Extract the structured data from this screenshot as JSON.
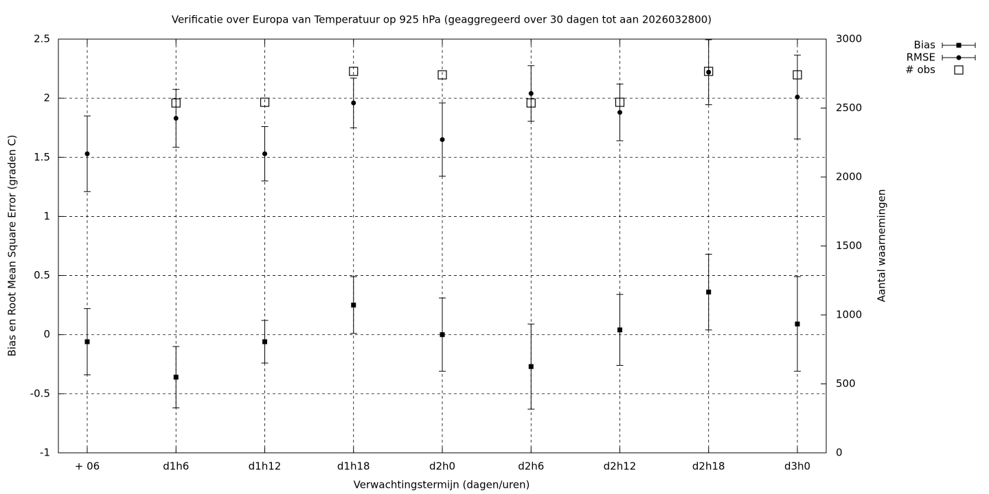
{
  "chart_data": {
    "type": "errorbar",
    "title": "Verificatie over Europa van Temperatuur op 925 hPa (geaggregeerd over 30 dagen tot aan 2026032800)",
    "x_label": "Verwachtingstermijn (dagen/uren)",
    "y_label": "Bias en Root Mean Square Error (graden C)",
    "y2_label": "Aantal waarnemingen",
    "categories": [
      "+ 06",
      "d1h6",
      "d1h12",
      "d1h18",
      "d2h0",
      "d2h6",
      "d2h12",
      "d2h18",
      "d3h0"
    ],
    "series": [
      {
        "name": "Bias",
        "color": "#000000",
        "marker": "square",
        "values": [
          -0.06,
          -0.36,
          -0.06,
          0.25,
          0.0,
          -0.27,
          0.04,
          0.36,
          0.09
        ],
        "errors": [
          0.28,
          0.26,
          0.18,
          0.24,
          0.31,
          0.36,
          0.3,
          0.32,
          0.4
        ]
      },
      {
        "name": "RMSE",
        "color": "#000000",
        "marker": "circle",
        "values": [
          1.53,
          1.83,
          1.53,
          1.96,
          1.65,
          2.04,
          1.88,
          2.22,
          2.01
        ],
        "errors": [
          0.32,
          0.245,
          0.23,
          0.21,
          0.31,
          0.235,
          0.24,
          0.275,
          0.355
        ]
      },
      {
        "name": "# obs",
        "color": "#000000",
        "marker": "open-square",
        "axis": "y2",
        "values": [
          null,
          2537,
          2542,
          2766,
          2741,
          2537,
          2542,
          2766,
          2741
        ]
      }
    ],
    "ylim": [
      -1,
      2.5
    ],
    "yticks": [
      -1,
      -0.5,
      0,
      0.5,
      1,
      1.5,
      2,
      2.5
    ],
    "y2lim": [
      0,
      3000
    ],
    "y2ticks": [
      0,
      500,
      1000,
      1500,
      2000,
      2500,
      3000
    ],
    "grid": true,
    "legend": "top-right"
  }
}
